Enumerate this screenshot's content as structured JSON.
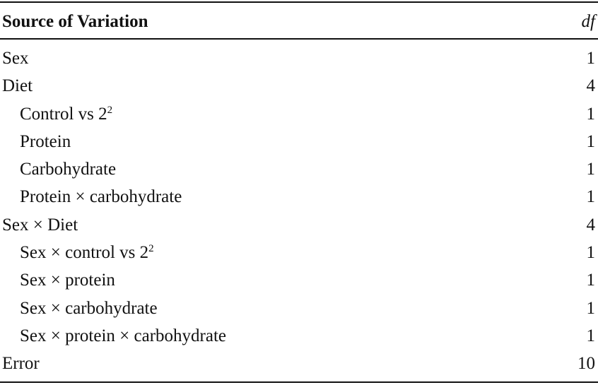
{
  "table": {
    "header": {
      "source": "Source of Variation",
      "df": "df"
    },
    "rows": [
      {
        "label": "Sex",
        "df": "1",
        "indent": false,
        "sup": ""
      },
      {
        "label": "Diet",
        "df": "4",
        "indent": false,
        "sup": ""
      },
      {
        "label": "Control vs 2",
        "sup": "2",
        "df": "1",
        "indent": true
      },
      {
        "label": "Protein",
        "df": "1",
        "indent": true,
        "sup": ""
      },
      {
        "label": "Carbohydrate",
        "df": "1",
        "indent": true,
        "sup": ""
      },
      {
        "label": "Protein × carbohydrate",
        "df": "1",
        "indent": true,
        "sup": ""
      },
      {
        "label": "Sex × Diet",
        "df": "4",
        "indent": false,
        "sup": ""
      },
      {
        "label": "Sex × control vs 2",
        "sup": "2",
        "df": "1",
        "indent": true
      },
      {
        "label": "Sex × protein",
        "df": "1",
        "indent": true,
        "sup": ""
      },
      {
        "label": "Sex × carbohydrate",
        "df": "1",
        "indent": true,
        "sup": ""
      },
      {
        "label": "Sex × protein × carbohydrate",
        "df": "1",
        "indent": true,
        "sup": ""
      },
      {
        "label": "Error",
        "df": "10",
        "indent": false,
        "sup": ""
      }
    ]
  }
}
